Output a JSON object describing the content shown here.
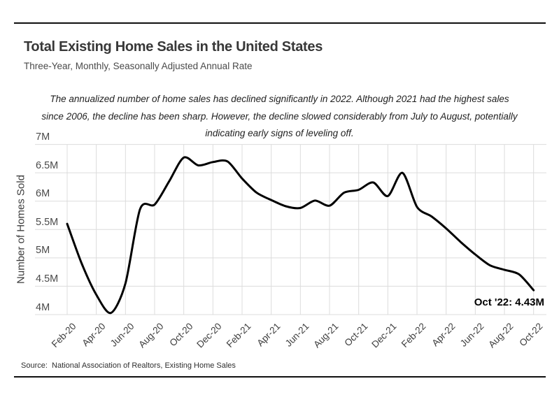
{
  "header": {
    "title": "Total Existing Home Sales in the United States",
    "subtitle": "Three-Year, Monthly, Seasonally Adjusted Annual Rate"
  },
  "annotation": {
    "line1": "The annualized number of home sales has declined significantly in 2022. Although 2021 had the highest sales",
    "line2": "since 2006, the decline has been sharp. However, the decline slowed considerably from July to August, potentially",
    "line3": "indicating early signs of leveling off."
  },
  "chart_data": {
    "type": "line",
    "title": "Total Existing Home Sales in the United States",
    "ylabel": "Number of Homes Sold",
    "xlabel": "",
    "ylim": [
      4,
      7
    ],
    "ytick_step": 0.5,
    "ytick_labels": [
      "7M",
      "6.5M",
      "6M",
      "5.5M",
      "5M",
      "4.5M",
      "4M"
    ],
    "grid": true,
    "legend": "none",
    "smoothing": true,
    "line_color": "#000000",
    "gridline_color": "#dcdcdc",
    "x_tick_label_every": 2,
    "categories": [
      "Feb-20",
      "Mar-20",
      "Apr-20",
      "May-20",
      "Jun-20",
      "Jul-20",
      "Aug-20",
      "Sep-20",
      "Oct-20",
      "Nov-20",
      "Dec-20",
      "Jan-21",
      "Feb-21",
      "Mar-21",
      "Apr-21",
      "May-21",
      "Jun-21",
      "Jul-21",
      "Aug-21",
      "Sep-21",
      "Oct-21",
      "Nov-21",
      "Dec-21",
      "Jan-22",
      "Feb-22",
      "Mar-22",
      "Apr-22",
      "May-22",
      "Jun-22",
      "Jul-22",
      "Aug-22",
      "Sep-22",
      "Oct-22"
    ],
    "values": [
      5.6,
      4.9,
      4.35,
      4.03,
      4.55,
      5.86,
      5.94,
      6.35,
      6.77,
      6.63,
      6.69,
      6.7,
      6.4,
      6.15,
      6.02,
      5.91,
      5.88,
      6.01,
      5.92,
      6.15,
      6.2,
      6.33,
      6.09,
      6.5,
      5.9,
      5.73,
      5.52,
      5.28,
      5.06,
      4.87,
      4.79,
      4.71,
      4.43
    ],
    "end_annotation": {
      "label": "Oct '22: 4.43M",
      "x": "Oct-22",
      "value": 4.43
    }
  },
  "source": {
    "text": "Source:  National Association of Realtors, Existing Home Sales"
  }
}
